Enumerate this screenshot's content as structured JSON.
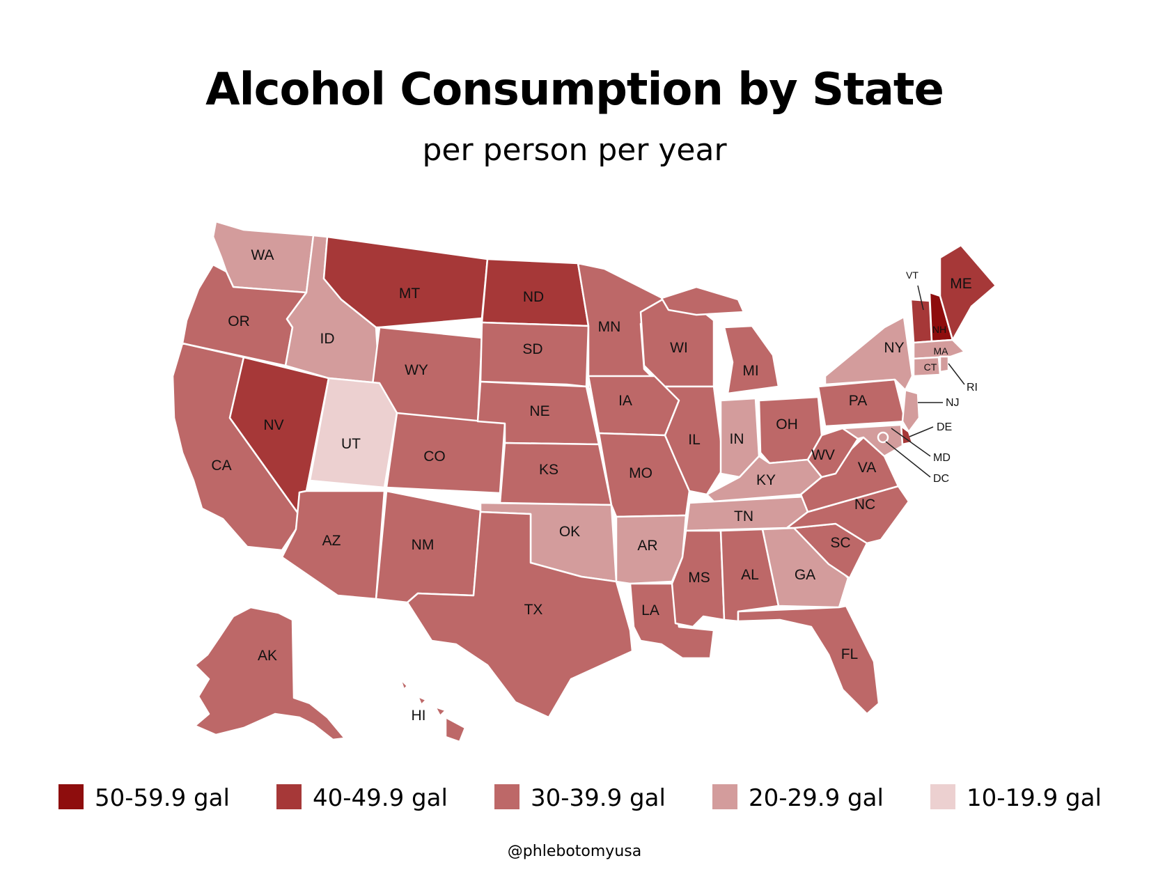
{
  "title": "Alcohol Consumption by State",
  "subtitle": "per person per year",
  "credit": "@phlebotomyusa",
  "legend": [
    {
      "label": "50-59.9 gal",
      "color": "#8e0d0d"
    },
    {
      "label": "40-49.9 gal",
      "color": "#a63838"
    },
    {
      "label": "30-39.9 gal",
      "color": "#bd6868"
    },
    {
      "label": "20-29.9 gal",
      "color": "#d39c9c"
    },
    {
      "label": "10-19.9 gal",
      "color": "#ecd0d0"
    }
  ],
  "states": {
    "WA": "20-29.9 gal",
    "OR": "30-39.9 gal",
    "CA": "30-39.9 gal",
    "NV": "40-49.9 gal",
    "ID": "20-29.9 gal",
    "MT": "40-49.9 gal",
    "WY": "30-39.9 gal",
    "UT": "10-19.9 gal",
    "AZ": "30-39.9 gal",
    "CO": "30-39.9 gal",
    "NM": "30-39.9 gal",
    "ND": "40-49.9 gal",
    "SD": "30-39.9 gal",
    "NE": "30-39.9 gal",
    "KS": "30-39.9 gal",
    "OK": "20-29.9 gal",
    "TX": "30-39.9 gal",
    "MN": "30-39.9 gal",
    "IA": "30-39.9 gal",
    "MO": "30-39.9 gal",
    "AR": "20-29.9 gal",
    "LA": "30-39.9 gal",
    "WI": "30-39.9 gal",
    "IL": "30-39.9 gal",
    "MI": "30-39.9 gal",
    "IN": "20-29.9 gal",
    "OH": "30-39.9 gal",
    "KY": "20-29.9 gal",
    "TN": "20-29.9 gal",
    "MS": "30-39.9 gal",
    "AL": "30-39.9 gal",
    "GA": "20-29.9 gal",
    "FL": "30-39.9 gal",
    "SC": "30-39.9 gal",
    "NC": "30-39.9 gal",
    "VA": "30-39.9 gal",
    "WV": "30-39.9 gal",
    "PA": "30-39.9 gal",
    "NY": "20-29.9 gal",
    "VT": "40-49.9 gal",
    "NH": "50-59.9 gal",
    "ME": "40-49.9 gal",
    "MA": "20-29.9 gal",
    "CT": "20-29.9 gal",
    "RI": "20-29.9 gal",
    "NJ": "20-29.9 gal",
    "DE": "40-49.9 gal",
    "MD": "20-29.9 gal",
    "DC": "20-29.9 gal",
    "AK": "30-39.9 gal",
    "HI": "30-39.9 gal"
  }
}
